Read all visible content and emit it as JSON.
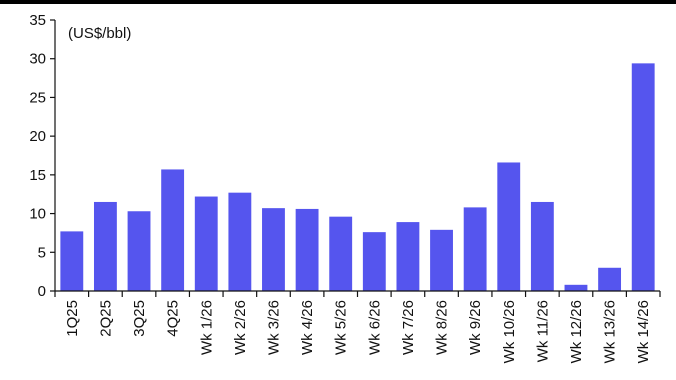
{
  "chart_data": {
    "type": "bar",
    "title": "",
    "unit_label": "(US$/bbl)",
    "xlabel": "",
    "ylabel": "",
    "ylim": [
      0,
      35
    ],
    "yticks": [
      0,
      5,
      10,
      15,
      20,
      25,
      30,
      35
    ],
    "grid": false,
    "bar_color": "#5555ee",
    "categories": [
      "1Q25",
      "2Q25",
      "3Q25",
      "4Q25",
      "Wk 1/26",
      "Wk 2/26",
      "Wk 3/26",
      "Wk 4/26",
      "Wk 5/26",
      "Wk 6/26",
      "Wk 7/26",
      "Wk 8/26",
      "Wk 9/26",
      "Wk 10/26",
      "Wk 11/26",
      "Wk 12/26",
      "Wk 13/26",
      "Wk 14/26"
    ],
    "values": [
      7.7,
      11.5,
      10.3,
      15.7,
      12.2,
      12.7,
      10.7,
      10.6,
      9.6,
      7.6,
      8.9,
      7.9,
      10.8,
      16.6,
      11.5,
      0.8,
      3.0,
      29.4
    ]
  }
}
